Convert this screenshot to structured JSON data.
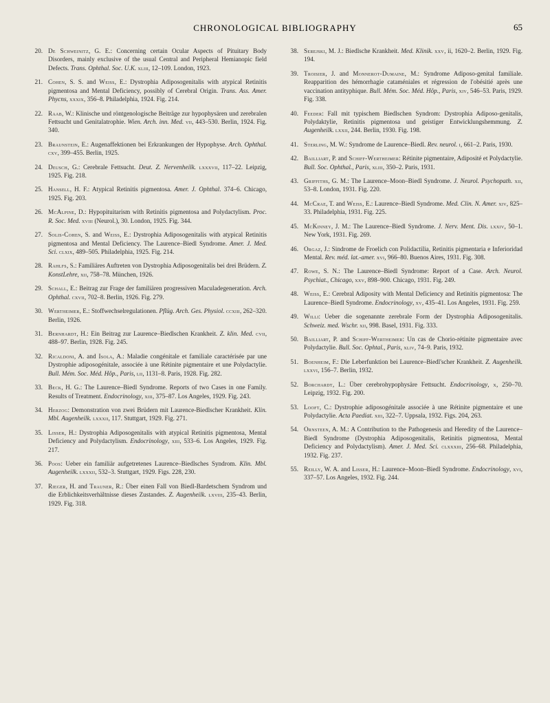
{
  "header": {
    "title": "CHRONOLOGICAL BIBLIOGRAPHY",
    "page_number": "65"
  },
  "entries_left": [
    {
      "num": "20.",
      "html": "<span class='sc'>De Schweinitz</span>, G. E.: Concerning certain Ocular Aspects of Pituitary Body Disorders, mainly exclusive of the usual Central and Peripheral Hemianopic field Defects. <span class='it'>Trans. Ophthal. Soc. U.K.</span> <span class='sc'>xliii</span>, 12–109. London, 1923."
    },
    {
      "num": "21.",
      "html": "<span class='sc'>Cohen</span>, S. S. and <span class='sc'>Weiss</span>, E.: Dystrophia Adiposogenitalis with atypical Retinitis pigmentosa and Mental Deficiency, possibly of Cerebral Origin. <span class='it'>Trans. Ass. Amer. Phycns</span>, <span class='sc'>xxxix</span>, 356–8. Philadelphia, 1924. Fig. 214."
    },
    {
      "num": "22.",
      "html": "<span class='sc'>Raab</span>, W.: Klinische und röntgenologische Beiträge zur hypophysären und zerebralen Fettsucht und Genitalatrophie. <span class='it'>Wien. Arch. inn. Med.</span> <span class='sc'>vii</span>, 443–530. Berlin, 1924. Fig. 340."
    },
    {
      "num": "23.",
      "html": "<span class='sc'>Braunstein</span>, E.: Augenaffektionen bei Erkrankungen der Hypophyse. <span class='it'>Arch. Ophthal.</span> <span class='sc'>cxv</span>, 399–455. Berlin, 1925."
    },
    {
      "num": "24.",
      "html": "<span class='sc'>Deusch</span>, G.: Cerebrale Fettsucht. <span class='it'>Deut. Z. Nervenheilk.</span> <span class='sc'>lxxxvii</span>, 117–22. Leipzig, 1925. Fig. 218."
    },
    {
      "num": "25.",
      "html": "<span class='sc'>Hansell</span>, H. F.: Atypical Retinitis pigmentosa. <span class='it'>Amer. J. Ophthal.</span> 374–6. Chicago, 1925. Fig. 203."
    },
    {
      "num": "26.",
      "html": "<span class='sc'>McAlpine</span>, D.: Hypopituitarism with Retinitis pigmentosa and Polydactylism. <span class='it'>Proc. R. Soc. Med.</span> <span class='sc'>xviii</span> (Neurol.), 30. London, 1925. Fig. 344."
    },
    {
      "num": "27.",
      "html": "<span class='sc'>Solis-Cohen</span>, S. and <span class='sc'>Weiss</span>, E.: Dystrophia Adiposogenitalis with atypical Retinitis pigmentosa and Mental Deficiency. The Laurence–Biedl Syndrome. <span class='it'>Amer. J. Med. Sci.</span> <span class='sc'>clxix</span>, 489–505. Philadelphia, 1925. Fig. 214."
    },
    {
      "num": "28.",
      "html": "<span class='sc'>Rahlfs</span>, S.: Familiäres Auftreten von Dystrophia Adiposogenitalis bei drei Brüdern. <span class='it'>Z. KonstLehre</span>, <span class='sc'>xii</span>, 758–78. München, 1926."
    },
    {
      "num": "29.",
      "html": "<span class='sc'>Schall</span>, E.: Beitrag zur Frage der familiären progressiven Maculadegeneration. <span class='it'>Arch. Ophthal.</span> <span class='sc'>cxvii</span>, 702–8. Berlin, 1926. Fig. 279."
    },
    {
      "num": "30.",
      "html": "<span class='sc'>Wertheimer</span>, E.: Stoffwechselregulationen. <span class='it'>Pflüg. Arch. Ges. Physiol.</span> <span class='sc'>ccxiii</span>, 262–320. Berlin, 1926."
    },
    {
      "num": "31.",
      "html": "<span class='sc'>Bernhardt</span>, H.: Ein Beitrag zur Laurence–Biedlschen Krankheit. <span class='it'>Z. klin. Med.</span> <span class='sc'>cvii</span>, 488–97. Berlin, 1928. Fig. 245."
    },
    {
      "num": "32.",
      "html": "<span class='sc'>Ricaldoni</span>, A. and <span class='sc'>Isola</span>, A.: Maladie congénitale et familiale caractérisée par une Dystrophie adiposogénitale, associée à une Rétinite pigmentaire et une Polydactylie. <span class='it'>Bull. Mém. Soc. Méd. Hôp., Paris</span>, <span class='sc'>lii</span>, 1131–8. Paris, 1928. Fig. 282."
    },
    {
      "num": "33.",
      "html": "<span class='sc'>Beck</span>, H. G.: The Laurence–Biedl Syndrome. Reports of two Cases in one Family. Results of Treatment. <span class='it'>Endocrinology</span>, <span class='sc'>xiii</span>, 375–87. Los Angeles, 1929. Fig. 243."
    },
    {
      "num": "34.",
      "html": "<span class='sc'>Herzog</span>: Demonstration von zwei Brüdern mit Laurence-Biedlscher Krankheit. <span class='it'>Klin. Mbl. Augenheilk.</span> <span class='sc'>lxxxii</span>, 117. Stuttgart, 1929. Fig. 271."
    },
    {
      "num": "35.",
      "html": "<span class='sc'>Lisser</span>, H.: Dystrophia Adiposogenitalis with atypical Retinitis pigmentosa, Mental Deficiency and Polydactylism. <span class='it'>Endocrinology</span>, <span class='sc'>xiii</span>, 533–6. Los Angeles, 1929. Fig. 217."
    },
    {
      "num": "36.",
      "html": "<span class='sc'>Poos</span>: Ueber ein familiär aufgetretenes Laurence–Biedlsches Syndrom. <span class='it'>Klin. Mbl. Augenheilk.</span> <span class='sc'>lxxxii</span>, 532–3. Stuttgart, 1929. Figs. 228, 230."
    },
    {
      "num": "37.",
      "html": "<span class='sc'>Rieger</span>, H. and <span class='sc'>Trauner</span>, R.: Über einen Fall von Biedl-Bardetschem Syndrom und die Erblichkeitsverhältnisse dieses Zustandes. <span class='it'>Z. Augenheilk.</span> <span class='sc'>lxviii</span>, 235–43. Berlin, 1929. Fig. 318."
    }
  ],
  "entries_right": [
    {
      "num": "38.",
      "html": "<span class='sc'>Serejski</span>, M. J.: Biedlsche Krankheit. <span class='it'>Med. Klinik.</span> <span class='sc'>xxv</span>, ii, 1620–2. Berlin, 1929. Fig. 194."
    },
    {
      "num": "39.",
      "html": "<span class='sc'>Troisier</span>, J. and <span class='sc'>Monnerot-Dumaine</span>, M.: Syndrome Adiposo-genital familiale. Reapparition des hémorrhagie cataméniales et régression de l'obésitié après une vaccination antityphique. <span class='it'>Bull. Mém. Soc. Méd. Hôp., Paris</span>, <span class='sc'>xiv</span>, 546–53. Paris, 1929. Fig. 338."
    },
    {
      "num": "40.",
      "html": "<span class='sc'>Feeder</span>: Fall mit typischem Biedlschen Syndrom: Dystrophia Adiposo-genitalis, Polydaktylie, Retinitis pigmentosa und geistiger Entwicklungshemmung. <span class='it'>Z. Augenheilk.</span> <span class='sc'>lxxii</span>, 244. Berlin, 1930. Fig. 198."
    },
    {
      "num": "41.",
      "html": "<span class='sc'>Sterling</span>, M. W.: Syndrome de Laurence–Biedl. <span class='it'>Rev. neurol.</span> <span class='sc'>i</span>, 661–2. Paris, 1930."
    },
    {
      "num": "42.",
      "html": "<span class='sc'>Bailliart</span>, P. and <span class='sc'>Schiff-Wertheimer</span>: Rétinite pigmentaire, Adiposité et Polydactylie. <span class='it'>Bull. Soc. Ophthal., Paris</span>, <span class='sc'>xliii</span>, 350–2. Paris, 1931."
    },
    {
      "num": "43.",
      "html": "<span class='sc'>Griffiths</span>, G. M.: The Laurence–Moon–Biedl Syndrome. <span class='it'>J. Neurol. Psychopath.</span> <span class='sc'>xii</span>, 53–8. London, 1931. Fig. 220."
    },
    {
      "num": "44.",
      "html": "<span class='sc'>McCrae</span>, T. and <span class='sc'>Weiss</span>, E.: Laurence–Biedl Syndrome. <span class='it'>Med. Clin. N. Amer.</span> <span class='sc'>xiv</span>, 825–33. Philadelphia, 1931. Fig. 225."
    },
    {
      "num": "45.",
      "html": "<span class='sc'>McKinney</span>, J. M.: The Laurence–Biedl Syndrome. <span class='it'>J. Nerv. Ment. Dis.</span> <span class='sc'>lxxiv</span>, 50–1. New York, 1931. Fig. 269."
    },
    {
      "num": "46.",
      "html": "<span class='sc'>Orgaz</span>, J.: Sindrome de Froelich con Polidactilia, Retinitis pigmentaria e Inferioridad Mental. <span class='it'>Rev. méd. lat.-amer.</span> <span class='sc'>xvi</span>, 966–80. Buenos Aires, 1931. Fig. 308."
    },
    {
      "num": "47.",
      "html": "<span class='sc'>Rowe</span>, S. N.: The Laurence–Biedl Syndrome: Report of a Case. <span class='it'>Arch. Neurol. Psychiat., Chicago</span>, <span class='sc'>xxv</span>, 898–900. Chicago, 1931. Fig. 249."
    },
    {
      "num": "48.",
      "html": "<span class='sc'>Weiss</span>, E.: Cerebral Adiposity with Mental Deficiency and Retinitis pigmentosa: The Laurence–Biedl Syndrome. <span class='it'>Endocrinology</span>, <span class='sc'>xv</span>, 435–41. Los Angeles, 1931. Fig. 259."
    },
    {
      "num": "49.",
      "html": "<span class='sc'>Willi</span>: Ueber die sogenannte zerebrale Form der Dystrophia Adiposogenitalis. <span class='it'>Schweiz. med. Wschr.</span> <span class='sc'>xii</span>, 998. Basel, 1931. Fig. 333."
    },
    {
      "num": "50.",
      "html": "<span class='sc'>Bailliart</span>, P. and <span class='sc'>Schiff-Wertheimer</span>: Un cas de Chorio-rétinite pigmentaire avec Polydactylie. <span class='it'>Bull. Soc. Ophtal., Paris</span>, <span class='sc'>xliv</span>, 74–9. Paris, 1932."
    },
    {
      "num": "51.",
      "html": "<span class='sc'>Boenheim</span>, F.: Die Leberfunktion bei Laurence–Biedl'scher Krankheit. <span class='it'>Z. Augenheilk.</span> <span class='sc'>lxxvi</span>, 156–7. Berlin, 1932."
    },
    {
      "num": "52.",
      "html": "<span class='sc'>Borchardt</span>, L.: Über cerebrohypophysäre Fettsucht. <span class='it'>Endocrinology</span>, <span class='sc'>x</span>, 250–70. Leipzig, 1932. Fig. 200."
    },
    {
      "num": "53.",
      "html": "<span class='sc'>Looft</span>, C.: Dystrophie adiposogénitale associée à une Rétinite pigmentaire et une Polydactylie. <span class='it'>Acta Paediat.</span> <span class='sc'>xiii</span>, 322–7. Uppsala, 1932. Figs. 204, 263."
    },
    {
      "num": "54.",
      "html": "<span class='sc'>Ornsteen</span>, A. M.: A Contribution to the Pathogenesis and Heredity of the Laurence–Biedl Syndrome (Dystrophia Adiposogenitalis, Retinitis pigmentosa, Mental Deficiency and Polydactylism). <span class='it'>Amer. J. Med. Sci.</span> <span class='sc'>clxxxiii</span>, 256–68. Philadelphia, 1932. Fig. 237."
    },
    {
      "num": "55.",
      "html": "<span class='sc'>Reilly</span>, W. A. and <span class='sc'>Lisser</span>, H.: Laurence–Moon–Biedl Syndrome. <span class='it'>Endocrinology</span>, <span class='sc'>xvi</span>, 337–57. Los Angeles, 1932. Fig. 244."
    }
  ]
}
